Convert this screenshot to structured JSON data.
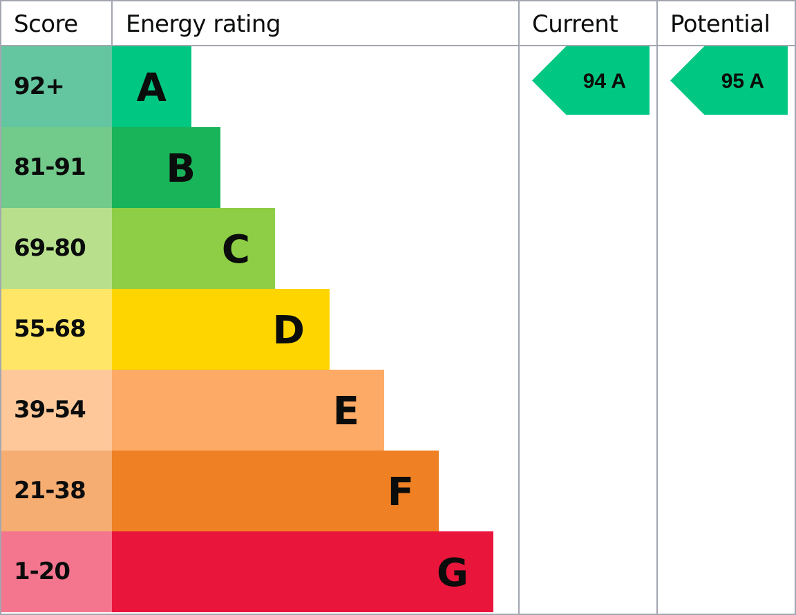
{
  "chart_data": {
    "type": "bar",
    "headers": {
      "score": "Score",
      "rating": "Energy rating",
      "current": "Current",
      "potential": "Potential"
    },
    "bands": [
      {
        "score": "92+",
        "letter": "A",
        "score_color": "#63c6a0",
        "bar_color": "#00c781"
      },
      {
        "score": "81-91",
        "letter": "B",
        "score_color": "#72ca8b",
        "bar_color": "#19b459"
      },
      {
        "score": "69-80",
        "letter": "C",
        "score_color": "#b8e08c",
        "bar_color": "#8dce46"
      },
      {
        "score": "55-68",
        "letter": "D",
        "score_color": "#ffe666",
        "bar_color": "#ffd500"
      },
      {
        "score": "39-54",
        "letter": "E",
        "score_color": "#fec89a",
        "bar_color": "#fcaa65"
      },
      {
        "score": "21-38",
        "letter": "F",
        "score_color": "#f5ad72",
        "bar_color": "#ef8023"
      },
      {
        "score": "1-20",
        "letter": "G",
        "score_color": "#f4758e",
        "bar_color": "#e9153b"
      }
    ],
    "current": {
      "value": 94,
      "band": "A",
      "label": "94 A",
      "color": "#00c781"
    },
    "potential": {
      "value": 95,
      "band": "A",
      "label": "95 A",
      "color": "#00c781"
    },
    "grid_color": "#a3a6b0"
  }
}
